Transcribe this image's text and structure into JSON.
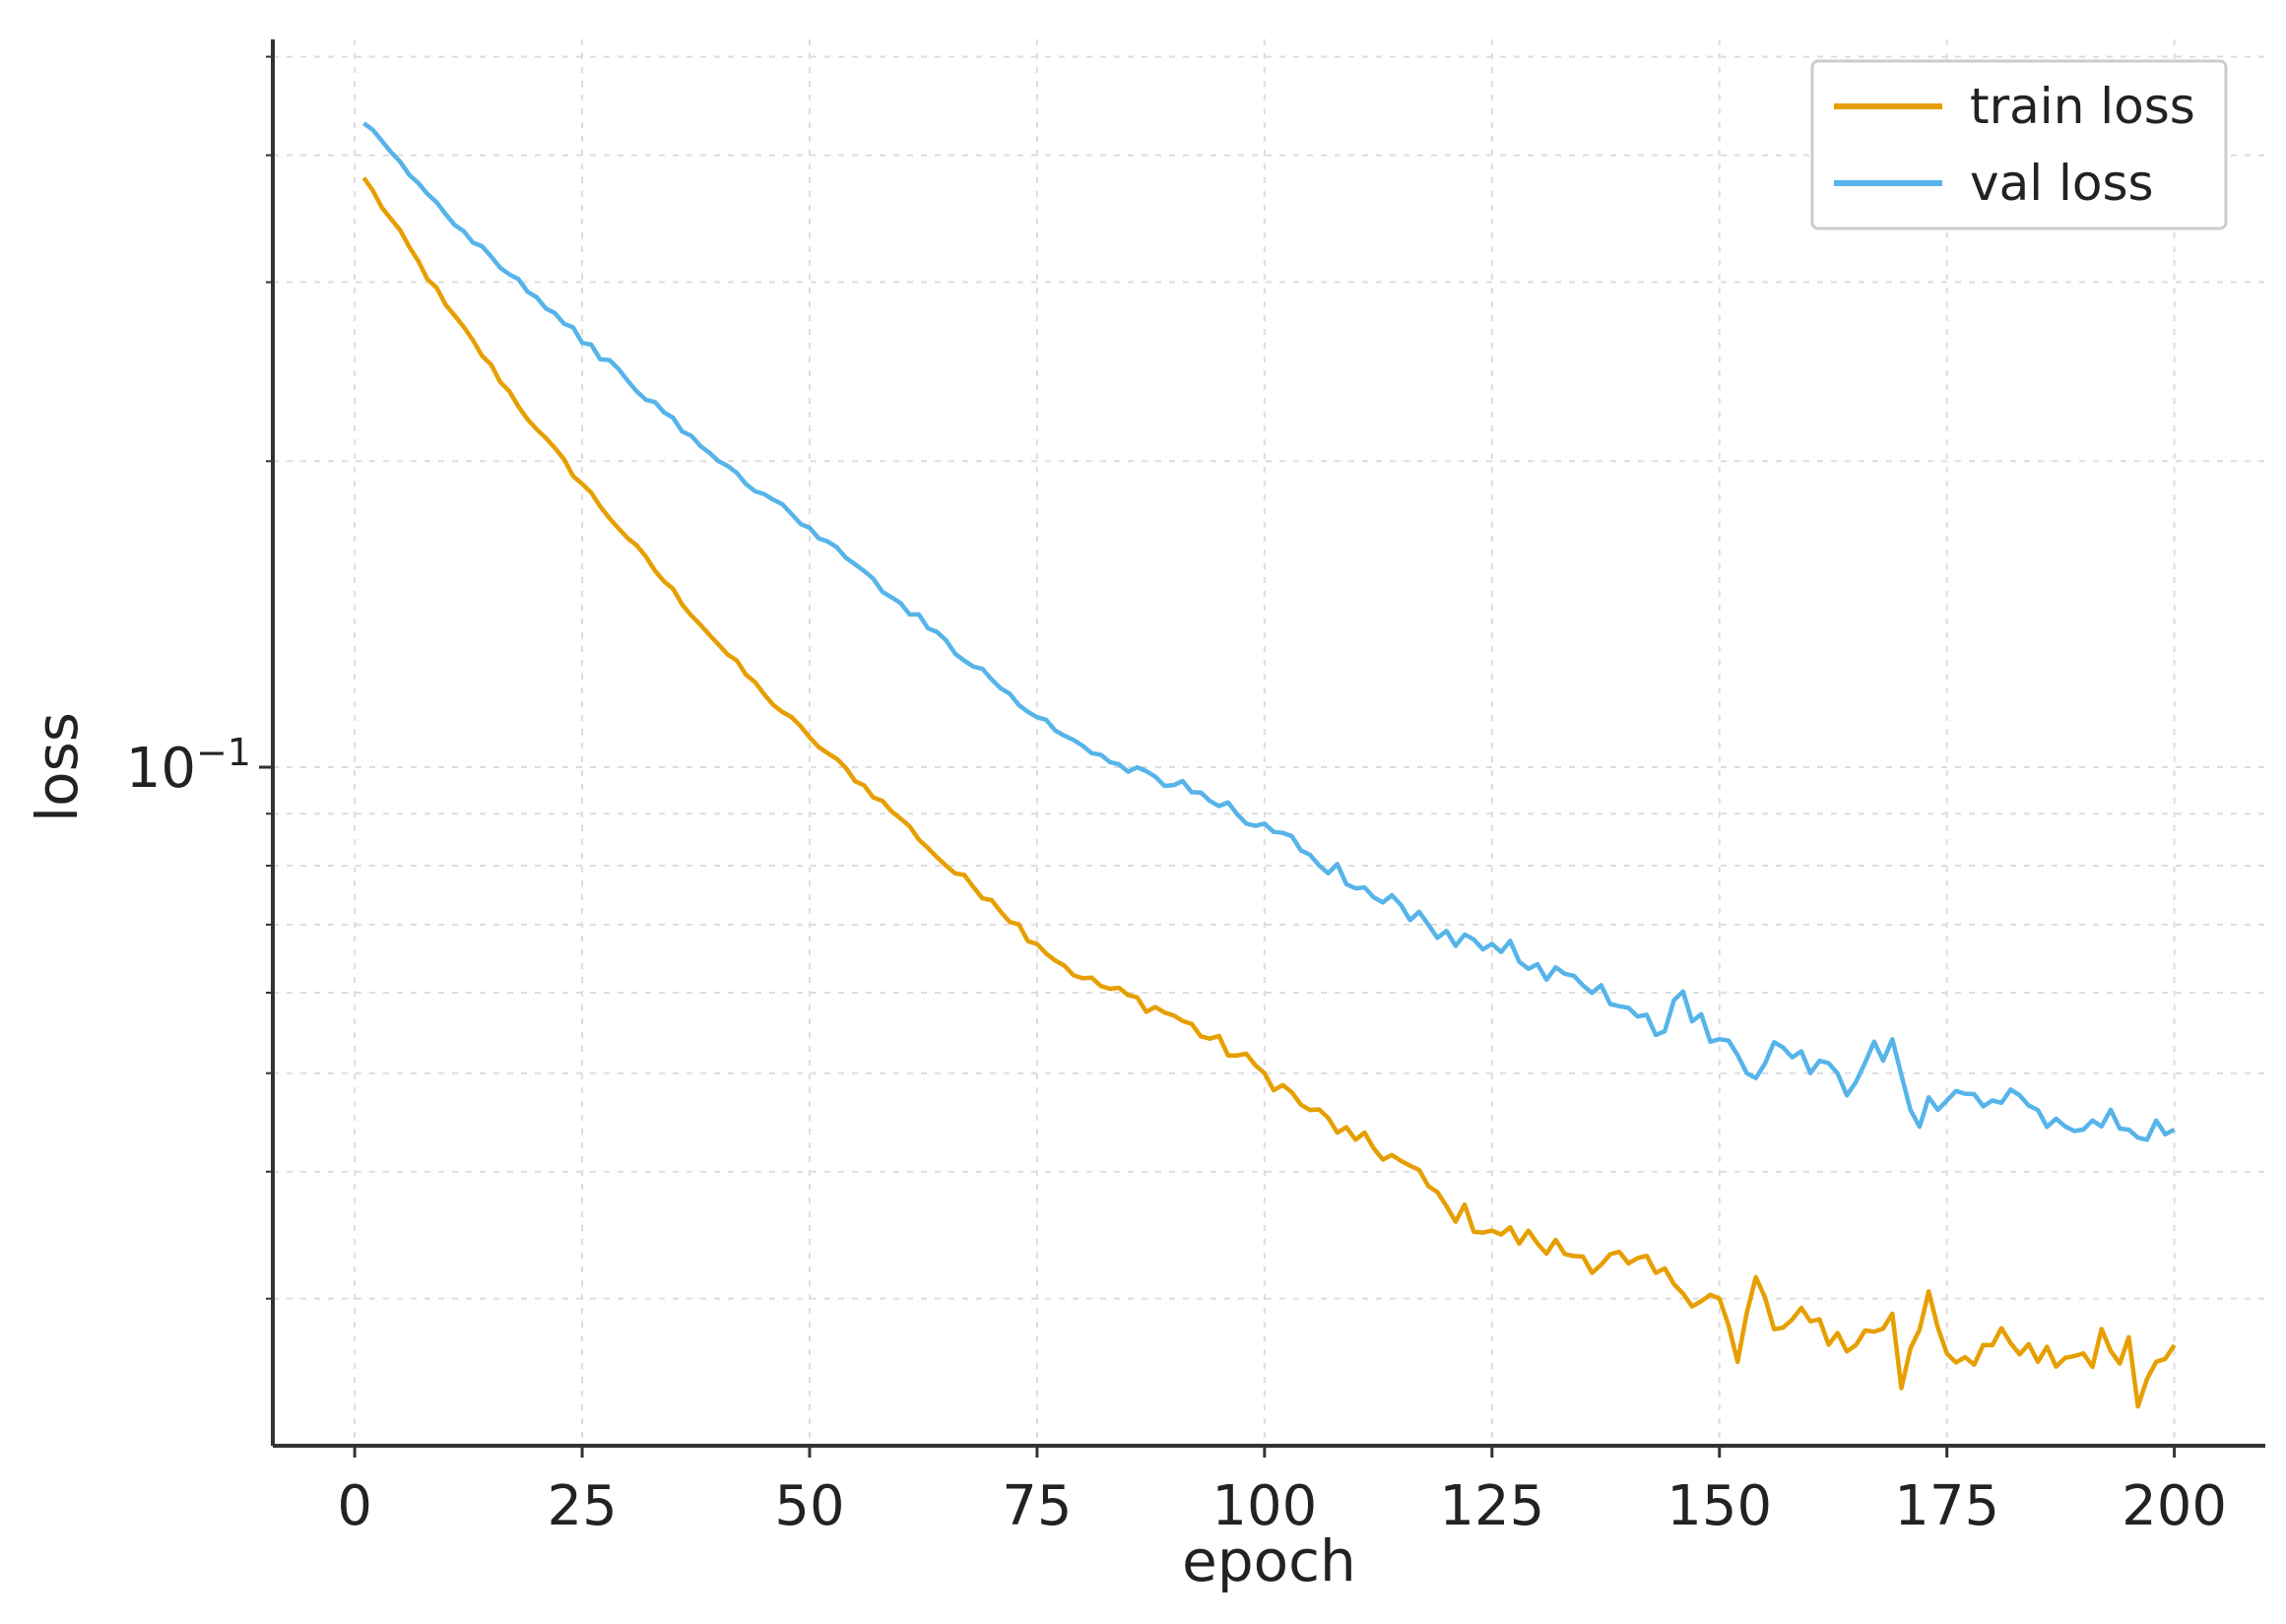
{
  "chart_data": {
    "type": "line",
    "title": "",
    "xlabel": "epoch",
    "ylabel": "loss",
    "x_scale": "linear",
    "y_scale": "log",
    "xlim": [
      -9,
      210
    ],
    "ylim": [
      0.0215,
      0.52
    ],
    "xticks": [
      0,
      25,
      50,
      75,
      100,
      125,
      150,
      175,
      200
    ],
    "yticks": [
      {
        "value": 0.1,
        "base": "10",
        "exponent": "−1"
      }
    ],
    "grid": true,
    "legend_position": "top-right",
    "series": [
      {
        "name": "train loss",
        "color": "#e69f00",
        "points": [
          [
            1,
            0.38
          ],
          [
            10,
            0.285
          ],
          [
            20,
            0.215
          ],
          [
            30,
            0.168
          ],
          [
            40,
            0.132
          ],
          [
            45,
            0.118
          ],
          [
            50,
            0.107
          ],
          [
            60,
            0.089
          ],
          [
            65,
            0.08
          ],
          [
            70,
            0.074
          ],
          [
            75,
            0.067
          ],
          [
            80,
            0.062
          ],
          [
            90,
            0.057
          ],
          [
            100,
            0.05
          ],
          [
            105,
            0.046
          ],
          [
            110,
            0.043
          ],
          [
            115,
            0.041
          ],
          [
            120,
            0.037
          ],
          [
            125,
            0.035
          ],
          [
            130,
            0.034
          ],
          [
            135,
            0.033
          ],
          [
            140,
            0.0325
          ],
          [
            145,
            0.031
          ],
          [
            150,
            0.03
          ],
          [
            152,
            0.026
          ],
          [
            154,
            0.0315
          ],
          [
            156,
            0.028
          ],
          [
            160,
            0.0285
          ],
          [
            165,
            0.027
          ],
          [
            169,
            0.029
          ],
          [
            170,
            0.0245
          ],
          [
            173,
            0.0305
          ],
          [
            175,
            0.0265
          ],
          [
            180,
            0.027
          ],
          [
            185,
            0.026
          ],
          [
            190,
            0.0265
          ],
          [
            195,
            0.0275
          ],
          [
            196,
            0.0235
          ],
          [
            198,
            0.026
          ],
          [
            200,
            0.027
          ]
        ]
      },
      {
        "name": "val loss",
        "color": "#56b4e9",
        "points": [
          [
            1,
            0.43
          ],
          [
            10,
            0.35
          ],
          [
            20,
            0.29
          ],
          [
            30,
            0.24
          ],
          [
            40,
            0.2
          ],
          [
            50,
            0.172
          ],
          [
            60,
            0.145
          ],
          [
            70,
            0.122
          ],
          [
            75,
            0.112
          ],
          [
            80,
            0.105
          ],
          [
            90,
            0.096
          ],
          [
            100,
            0.088
          ],
          [
            105,
            0.082
          ],
          [
            110,
            0.076
          ],
          [
            118,
            0.07
          ],
          [
            120,
            0.069
          ],
          [
            125,
            0.067
          ],
          [
            130,
            0.064
          ],
          [
            135,
            0.061
          ],
          [
            140,
            0.058
          ],
          [
            144,
            0.055
          ],
          [
            145,
            0.059
          ],
          [
            150,
            0.054
          ],
          [
            153,
            0.05
          ],
          [
            157,
            0.053
          ],
          [
            160,
            0.05
          ],
          [
            165,
            0.049
          ],
          [
            169,
            0.054
          ],
          [
            171,
            0.046
          ],
          [
            175,
            0.047
          ],
          [
            180,
            0.047
          ],
          [
            185,
            0.046
          ],
          [
            190,
            0.044
          ],
          [
            195,
            0.044
          ],
          [
            197,
            0.043
          ],
          [
            200,
            0.044
          ]
        ]
      }
    ]
  }
}
